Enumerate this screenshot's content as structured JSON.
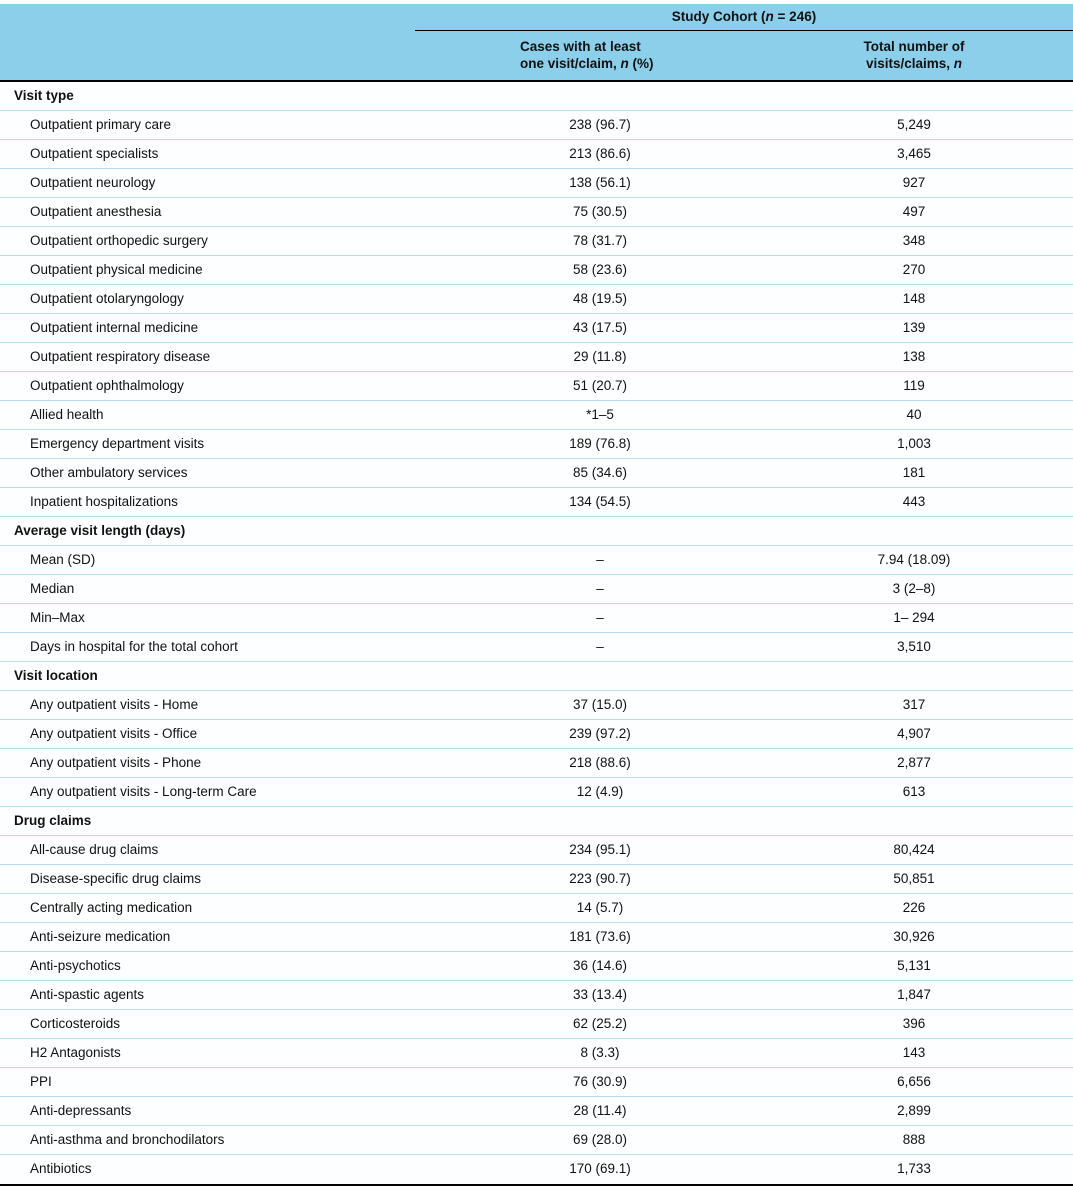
{
  "header": {
    "cohort_title_pre": "Study Cohort (",
    "cohort_title_n": "n",
    "cohort_title_post": " = 246)",
    "col_cases_line1": "Cases with at least",
    "col_cases_line2_pre": "one visit/claim, ",
    "col_cases_n": "n",
    "col_cases_line2_post": " (%)",
    "col_total_line1": "Total number of",
    "col_total_line2_pre": "visits/claims, ",
    "col_total_n": "n"
  },
  "colors": {
    "header_bg": "#8ccfeb",
    "row_border": "#b9dcee",
    "rule": "#000000"
  },
  "chart_data": {
    "type": "table",
    "title": "Study Cohort (n = 246)",
    "columns": [
      "Cases with at least one visit/claim, n (%)",
      "Total number of visits/claims, n"
    ],
    "sections": [
      {
        "header": "Visit type",
        "rows": [
          {
            "label": "Outpatient primary care",
            "cases": "238 (96.7)",
            "total": "5,249"
          },
          {
            "label": "Outpatient specialists",
            "cases": "213 (86.6)",
            "total": "3,465"
          },
          {
            "label": "Outpatient neurology",
            "cases": "138 (56.1)",
            "total": "927"
          },
          {
            "label": "Outpatient anesthesia",
            "cases": "75 (30.5)",
            "total": "497"
          },
          {
            "label": "Outpatient orthopedic surgery",
            "cases": "78 (31.7)",
            "total": "348"
          },
          {
            "label": "Outpatient physical medicine",
            "cases": "58 (23.6)",
            "total": "270"
          },
          {
            "label": "Outpatient otolaryngology",
            "cases": "48 (19.5)",
            "total": "148"
          },
          {
            "label": "Outpatient internal medicine",
            "cases": "43 (17.5)",
            "total": "139"
          },
          {
            "label": "Outpatient respiratory disease",
            "cases": "29 (11.8)",
            "total": "138"
          },
          {
            "label": "Outpatient ophthalmology",
            "cases": "51 (20.7)",
            "total": "119"
          },
          {
            "label": "Allied health",
            "cases": "*1–5",
            "total": "40"
          },
          {
            "label": "Emergency department visits",
            "cases": "189 (76.8)",
            "total": "1,003"
          },
          {
            "label": "Other ambulatory services",
            "cases": "85 (34.6)",
            "total": "181"
          },
          {
            "label": "Inpatient hospitalizations",
            "cases": "134 (54.5)",
            "total": "443"
          }
        ]
      },
      {
        "header": "Average visit length (days)",
        "rows": [
          {
            "label": "Mean (SD)",
            "cases": "–",
            "total": "7.94 (18.09)"
          },
          {
            "label": "Median",
            "cases": "–",
            "total": "3 (2–8)"
          },
          {
            "label": "Min–Max",
            "cases": "–",
            "total": "1– 294"
          },
          {
            "label": "Days in hospital for the total cohort",
            "cases": "–",
            "total": "3,510"
          }
        ]
      },
      {
        "header": "Visit location",
        "rows": [
          {
            "label": "Any outpatient visits - Home",
            "cases": "37 (15.0)",
            "total": "317"
          },
          {
            "label": "Any outpatient visits - Office",
            "cases": "239 (97.2)",
            "total": "4,907"
          },
          {
            "label": "Any outpatient visits - Phone",
            "cases": "218 (88.6)",
            "total": "2,877"
          },
          {
            "label": "Any outpatient visits - Long-term Care",
            "cases": "12 (4.9)",
            "total": "613"
          }
        ]
      },
      {
        "header": "Drug claims",
        "rows": [
          {
            "label": "All-cause drug claims",
            "cases": "234 (95.1)",
            "total": "80,424"
          },
          {
            "label": "Disease-specific drug claims",
            "cases": "223 (90.7)",
            "total": "50,851"
          },
          {
            "label": "Centrally acting medication",
            "cases": "14 (5.7)",
            "total": "226"
          },
          {
            "label": "Anti-seizure medication",
            "cases": "181 (73.6)",
            "total": "30,926"
          },
          {
            "label": "Anti-psychotics",
            "cases": "36 (14.6)",
            "total": "5,131"
          },
          {
            "label": "Anti-spastic agents",
            "cases": "33 (13.4)",
            "total": "1,847"
          },
          {
            "label": "Corticosteroids",
            "cases": "62 (25.2)",
            "total": "396"
          },
          {
            "label": "H2 Antagonists",
            "cases": "8 (3.3)",
            "total": "143"
          },
          {
            "label": "PPI",
            "cases": "76 (30.9)",
            "total": "6,656"
          },
          {
            "label": "Anti-depressants",
            "cases": "28 (11.4)",
            "total": "2,899"
          },
          {
            "label": "Anti-asthma and bronchodilators",
            "cases": "69 (28.0)",
            "total": "888"
          },
          {
            "label": "Antibiotics",
            "cases": "170 (69.1)",
            "total": "1,733"
          }
        ]
      }
    ]
  }
}
